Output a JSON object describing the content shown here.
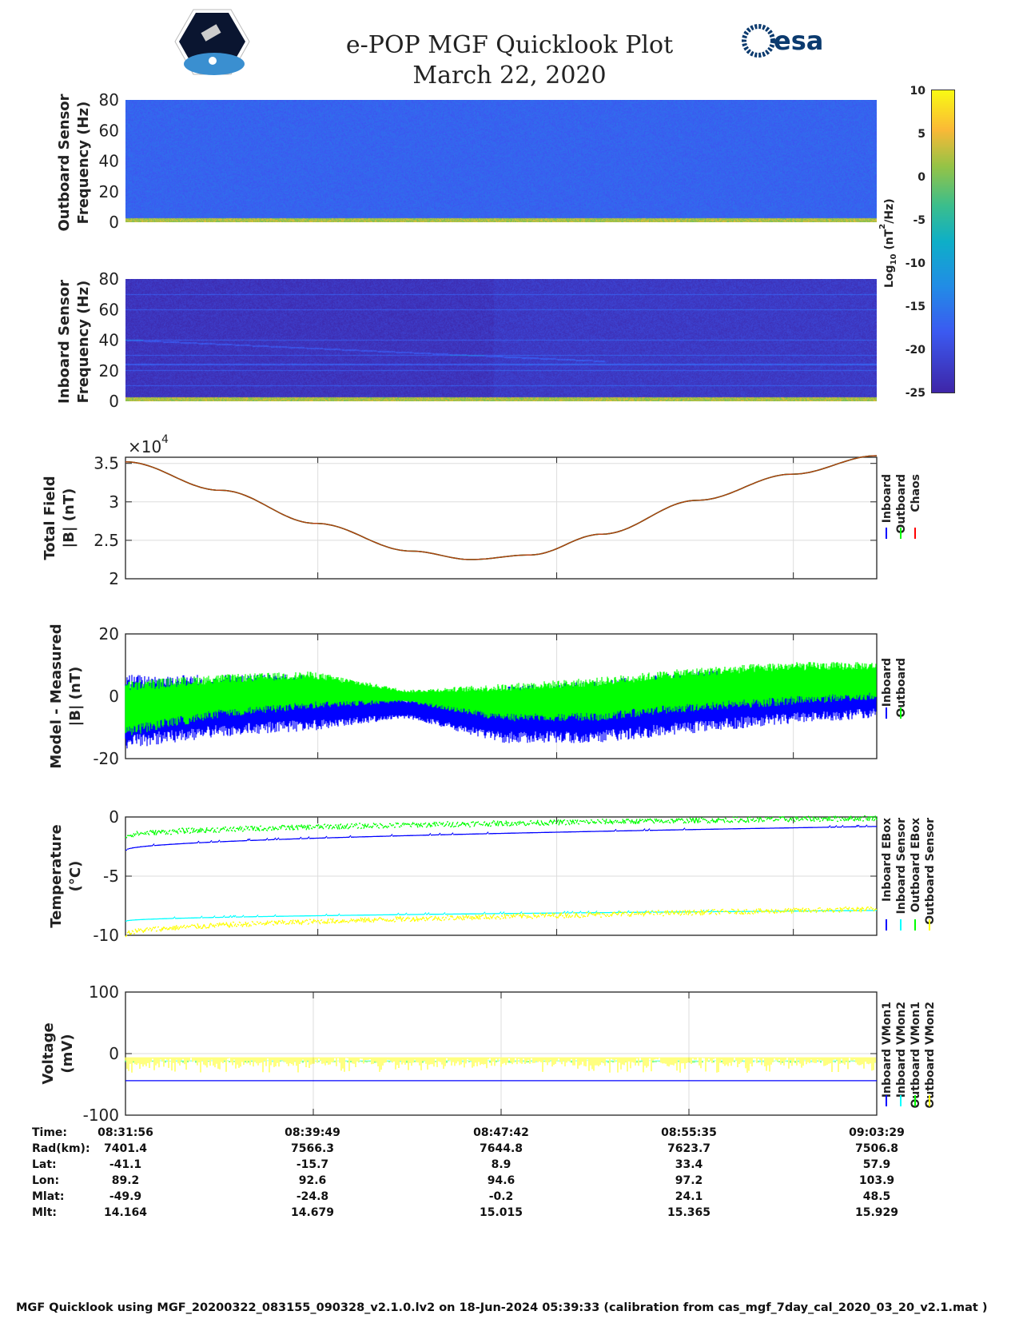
{
  "header": {
    "title": "e-POP MGF Quicklook Plot",
    "date": "March 22, 2020",
    "logo_left": "CASSIOPE",
    "logo_right": "esa"
  },
  "colors": {
    "inboard": "#0000ff",
    "outboard": "#00ff00",
    "chaos": "#ff0000",
    "sensor_in": "#00ffff",
    "sensor_out": "#ffff00",
    "vmon_in1": "#0000ff",
    "vmon_in2": "#00ffff",
    "vmon_out1": "#00ff00",
    "vmon_out2": "#ffff00"
  },
  "chart_data": [
    {
      "type": "heatmap",
      "name": "outboard-spectrogram",
      "ylabel": [
        "Outboard Sensor",
        "Frequency (Hz)"
      ],
      "ylim": [
        0,
        80
      ],
      "yticks": [
        "0",
        "20",
        "40",
        "60",
        "80"
      ],
      "typical_log_power": -17,
      "low_freq_band_log_power": 5
    },
    {
      "type": "heatmap",
      "name": "inboard-spectrogram",
      "ylabel": [
        "Inboard Sensor",
        "Frequency (Hz)"
      ],
      "ylim": [
        0,
        80
      ],
      "yticks": [
        "0",
        "20",
        "40",
        "60",
        "80"
      ],
      "typical_log_power": -23,
      "lines_hz": [
        10,
        20,
        24,
        30,
        40,
        60,
        70
      ],
      "low_freq_band_log_power": 5
    },
    {
      "type": "colorbar",
      "label": "Log10 (nT2/Hz)",
      "label_main": "Log",
      "label_sub": "10",
      "label_rest": " (nT",
      "label_sup": "2",
      "label_end": "/Hz)",
      "range": [
        -25,
        10
      ],
      "ticks": [
        "10",
        "5",
        "0",
        "-5",
        "-10",
        "-15",
        "-20",
        "-25"
      ]
    },
    {
      "type": "line",
      "name": "total-field",
      "ylabel": [
        "Total Field",
        "|B| (nT)"
      ],
      "exponent_label": "×10",
      "exponent": "4",
      "ylim": [
        2,
        3.58
      ],
      "yticks": [
        "2",
        "2.5",
        "3",
        "3.5"
      ],
      "x_minutes": [
        0,
        4,
        8,
        12,
        14.5,
        17,
        20,
        24,
        28,
        31.55
      ],
      "series": [
        {
          "name": "Inboard",
          "values": [
            3.52,
            3.15,
            2.72,
            2.36,
            2.25,
            2.31,
            2.58,
            3.02,
            3.36,
            3.6
          ]
        },
        {
          "name": "Outboard",
          "values": [
            3.52,
            3.15,
            2.72,
            2.36,
            2.25,
            2.31,
            2.58,
            3.02,
            3.36,
            3.6
          ]
        },
        {
          "name": "Chaos",
          "values": [
            3.52,
            3.15,
            2.72,
            2.36,
            2.25,
            2.31,
            2.58,
            3.02,
            3.36,
            3.6
          ]
        }
      ],
      "legend": [
        "Inboard",
        "Outboard",
        "Chaos"
      ]
    },
    {
      "type": "line",
      "name": "model-minus-measured",
      "ylabel": [
        "Model - Measured",
        "|B| (nT)"
      ],
      "ylim": [
        -20,
        20
      ],
      "yticks": [
        "-20",
        "0",
        "20"
      ],
      "series": [
        {
          "name": "Inboard",
          "mean": [
            -5,
            -3,
            -2,
            -4,
            -6,
            -5,
            -2,
            0,
            1
          ],
          "amp": [
            12,
            10,
            9,
            3,
            9,
            10,
            10,
            9,
            8
          ]
        },
        {
          "name": "Outboard",
          "mean": [
            -4,
            0,
            2,
            0,
            -2,
            -1,
            2,
            4,
            5
          ],
          "amp": [
            9,
            7,
            6,
            2,
            6,
            7,
            7,
            7,
            6
          ]
        }
      ],
      "legend": [
        "Inboard",
        "Outboard"
      ]
    },
    {
      "type": "line",
      "name": "temperature",
      "ylabel": [
        "Temperature",
        "(°C)"
      ],
      "ylim": [
        -10,
        0
      ],
      "yticks": [
        "-10",
        "-5",
        "0"
      ],
      "series": [
        {
          "name": "Inboard EBox",
          "start": -2.8,
          "end": -0.8
        },
        {
          "name": "Inboard Sensor",
          "start": -8.8,
          "end": -7.9
        },
        {
          "name": "Outboard EBox",
          "start": -1.6,
          "end": -0.1
        },
        {
          "name": "Outboard Sensor",
          "start": -9.9,
          "end": -7.8
        }
      ],
      "legend": [
        "Inboard EBox",
        "Inboard Sensor",
        "Outboard EBox",
        "Outboard Sensor"
      ]
    },
    {
      "type": "line",
      "name": "voltage",
      "ylabel": [
        "Voltage",
        "(mV)"
      ],
      "ylim": [
        -100,
        100
      ],
      "yticks": [
        "-100",
        "0",
        "100"
      ],
      "series": [
        {
          "name": "Inboard VMon1",
          "value": -44
        },
        {
          "name": "Inboard VMon2",
          "value": -12
        },
        {
          "name": "Outboard VMon1",
          "value": -13
        },
        {
          "name": "Outboard VMon2",
          "value": -14
        }
      ],
      "legend": [
        "Inboard VMon1",
        "Inboard VMon2",
        "Outboard VMon1",
        "Outboard VMon2"
      ]
    }
  ],
  "ephemeris": {
    "labels": [
      "Time:",
      "Rad(km):",
      "Lat:",
      "Lon:",
      "Mlat:",
      "Mlt:"
    ],
    "columns": [
      [
        "08:31:56",
        "7401.4",
        "-41.1",
        "89.2",
        "-49.9",
        "14.164"
      ],
      [
        "08:39:49",
        "7566.3",
        "-15.7",
        "92.6",
        "-24.8",
        "14.679"
      ],
      [
        "08:47:42",
        "7644.8",
        "8.9",
        "94.6",
        "-0.2",
        "15.015"
      ],
      [
        "08:55:35",
        "7623.7",
        "-",
        "97.2",
        "24.1",
        "15.365"
      ],
      [
        "09:03:29",
        "7506.8",
        "57.9",
        "103.9",
        "48.5",
        "15.929"
      ]
    ]
  },
  "footer": "MGF Quicklook using MGF_20200322_083155_090328_v2.1.0.lv2 on 18-Jun-2024 05:39:33 (calibration from cas_mgf_7day_cal_2020_03_20_v2.1.mat )"
}
